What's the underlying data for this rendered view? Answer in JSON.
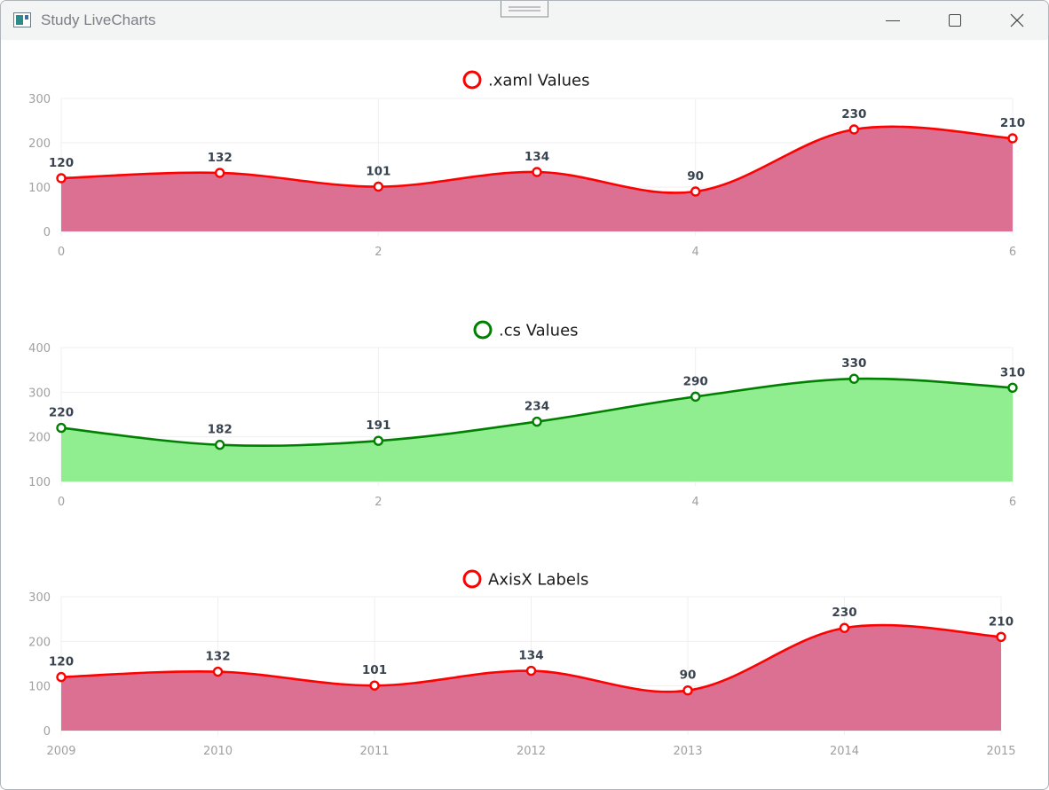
{
  "window": {
    "title": "Study LiveCharts",
    "icons": {
      "app": "app-icon",
      "minimize": "minimize-icon",
      "maximize": "maximize-icon",
      "close": "close-icon",
      "grip": "drag-grip-icon"
    }
  },
  "chart_data": [
    {
      "type": "area",
      "title": "",
      "legend": [
        ".xaml Values"
      ],
      "legend_position": "top-center",
      "x": [
        0,
        1,
        2,
        3,
        4,
        5,
        6
      ],
      "x_tick_labels": [
        "0",
        "2",
        "4",
        "6"
      ],
      "x_tick_values": [
        0,
        2,
        4,
        6
      ],
      "xlim": [
        0,
        6
      ],
      "ylim": [
        0,
        300
      ],
      "y_ticks": [
        0,
        100,
        200,
        300
      ],
      "grid": true,
      "series": [
        {
          "name": ".xaml Values",
          "values": [
            120,
            132,
            101,
            134,
            90,
            230,
            210
          ],
          "stroke": "#ff0000",
          "fill": "#db7093"
        }
      ]
    },
    {
      "type": "area",
      "title": "",
      "legend": [
        ".cs Values"
      ],
      "legend_position": "top-center",
      "x": [
        0,
        1,
        2,
        3,
        4,
        5,
        6
      ],
      "x_tick_labels": [
        "0",
        "2",
        "4",
        "6"
      ],
      "x_tick_values": [
        0,
        2,
        4,
        6
      ],
      "xlim": [
        0,
        6
      ],
      "ylim": [
        100,
        400
      ],
      "y_ticks": [
        100,
        200,
        300,
        400
      ],
      "grid": true,
      "series": [
        {
          "name": ".cs Values",
          "values": [
            220,
            182,
            191,
            234,
            290,
            330,
            310
          ],
          "stroke": "#008000",
          "fill": "#90ee90"
        }
      ]
    },
    {
      "type": "area",
      "title": "",
      "legend": [
        "AxisX Labels"
      ],
      "legend_position": "top-center",
      "x": [
        0,
        1,
        2,
        3,
        4,
        5,
        6
      ],
      "x_tick_labels": [
        "2009",
        "2010",
        "2011",
        "2012",
        "2013",
        "2014",
        "2015"
      ],
      "x_tick_values": [
        0,
        1,
        2,
        3,
        4,
        5,
        6
      ],
      "xlim": [
        0,
        6
      ],
      "ylim": [
        0,
        300
      ],
      "y_ticks": [
        0,
        100,
        200,
        300
      ],
      "grid": true,
      "series": [
        {
          "name": "AxisX Labels",
          "values": [
            120,
            132,
            101,
            134,
            90,
            230,
            210
          ],
          "stroke": "#ff0000",
          "fill": "#db7093"
        }
      ]
    }
  ]
}
